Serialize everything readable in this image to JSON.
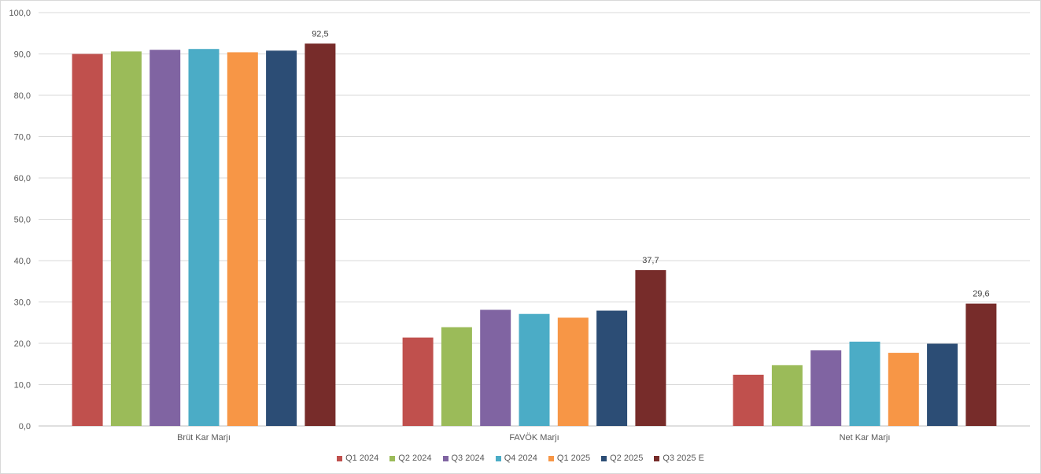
{
  "chart_data": {
    "type": "bar",
    "title": "",
    "xlabel": "",
    "ylabel": "",
    "ylim": [
      0,
      100
    ],
    "yticks": [
      "0,0",
      "10,0",
      "20,0",
      "30,0",
      "40,0",
      "50,0",
      "60,0",
      "70,0",
      "80,0",
      "90,0",
      "100,0"
    ],
    "grid": true,
    "legend_position": "bottom",
    "categories": [
      "Brüt Kar Marjı",
      "FAVÖK Marjı",
      "Net Kar Marjı"
    ],
    "series": [
      {
        "name": "Q1 2024",
        "color": "#C0504D",
        "values": [
          90.0,
          21.4,
          12.4
        ]
      },
      {
        "name": "Q2 2024",
        "color": "#9BBB59",
        "values": [
          90.6,
          23.9,
          14.7
        ]
      },
      {
        "name": "Q3 2024",
        "color": "#8064A2",
        "values": [
          91.0,
          28.1,
          18.3
        ]
      },
      {
        "name": "Q4 2024",
        "color": "#4BACC6",
        "values": [
          91.2,
          27.1,
          20.4
        ]
      },
      {
        "name": "Q1 2025",
        "color": "#F79646",
        "values": [
          90.4,
          26.2,
          17.7
        ]
      },
      {
        "name": "Q2 2025",
        "color": "#2C4D75",
        "values": [
          90.8,
          27.9,
          19.9
        ]
      },
      {
        "name": "Q3 2025 E",
        "color": "#772C2A",
        "values": [
          92.5,
          37.7,
          29.6
        ]
      }
    ],
    "data_labels": [
      {
        "category": "Brüt Kar Marjı",
        "series": "Q3 2025 E",
        "text": "92,5"
      },
      {
        "category": "FAVÖK Marjı",
        "series": "Q3 2025 E",
        "text": "37,7"
      },
      {
        "category": "Net Kar Marjı",
        "series": "Q3 2025 E",
        "text": "29,6"
      }
    ]
  }
}
